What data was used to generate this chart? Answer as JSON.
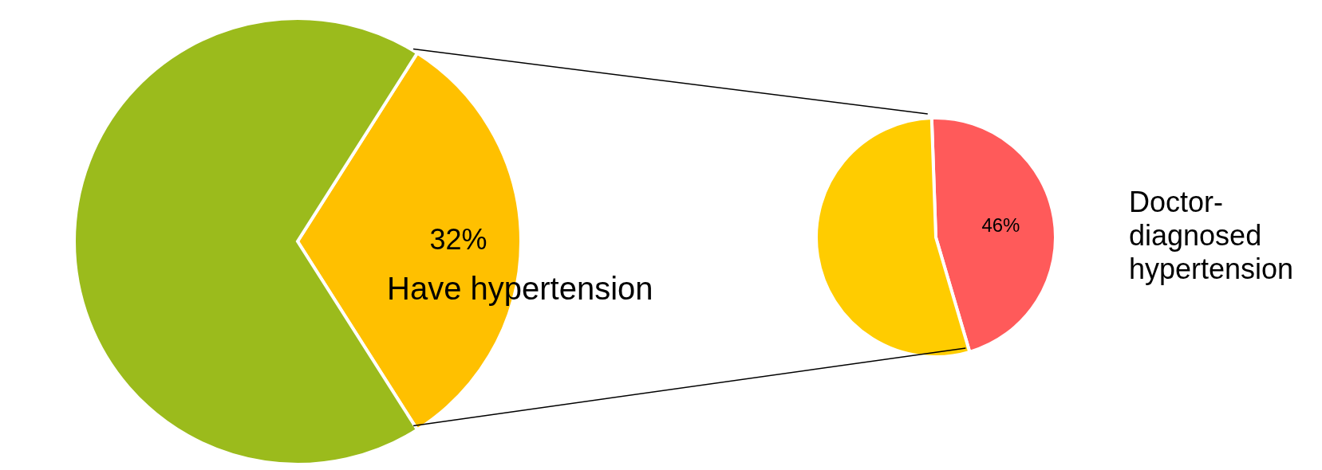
{
  "chart_data": [
    {
      "type": "pie",
      "categories": [
        "Have hypertension",
        null
      ],
      "values": [
        32,
        68
      ],
      "colors": [
        "#ffc000",
        "#9bbb1c"
      ],
      "value_labels": [
        "32%",
        null
      ]
    },
    {
      "type": "pie",
      "categories": [
        "Doctor-diagnosed hypertension",
        null
      ],
      "values": [
        46,
        54
      ],
      "colors": [
        "#ff5a5a",
        "#ffcc00"
      ],
      "value_labels": [
        "46%",
        null
      ]
    }
  ]
}
